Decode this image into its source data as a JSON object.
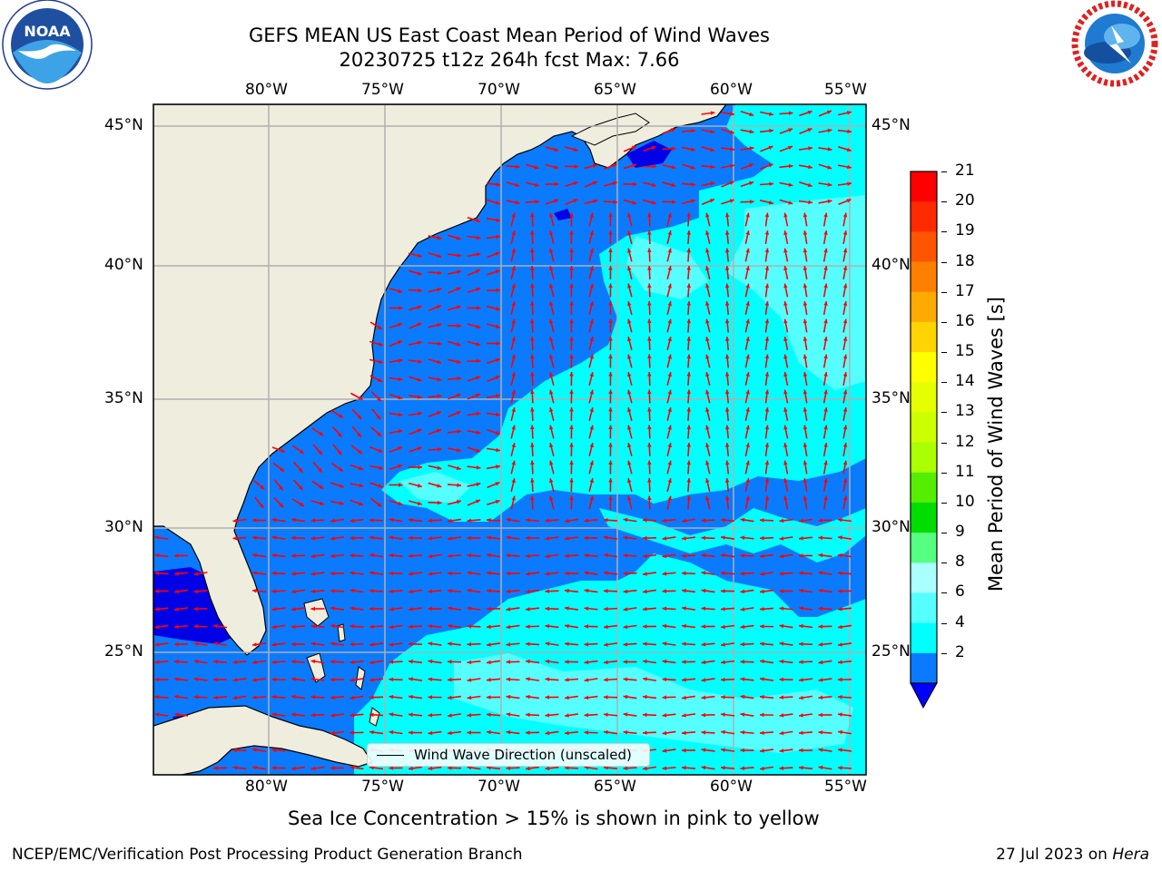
{
  "title": {
    "line1": "GEFS MEAN US East Coast Mean Period of Wind Waves",
    "line2": "20230725 t12z 264h fcst   Max: 7.66"
  },
  "logos": {
    "left": {
      "icon": "noaa-logo",
      "text": "NOAA"
    },
    "right": {
      "icon": "nws-logo",
      "text": "NATIONAL WEATHER SERVICE"
    }
  },
  "map": {
    "lon_labels": [
      "80°W",
      "75°W",
      "70°W",
      "65°W",
      "60°W",
      "55°W"
    ],
    "lat_labels": [
      "45°N",
      "40°N",
      "35°N",
      "30°N",
      "25°N"
    ],
    "colors": {
      "land": "#efedde",
      "ocean_dark": "#0000e6",
      "ocean_blue": "#0a7bff",
      "ocean_cyan": "#00ffff",
      "ocean_lightcyan": "#55ffff",
      "arrows": "#ff0000",
      "grid": "#b0b0b0"
    }
  },
  "legend": {
    "label": "Wind Wave Direction (unscaled)"
  },
  "colorbar": {
    "title": "Mean Period of Wind Waves [s]",
    "ticks": [
      "21",
      "20",
      "19",
      "18",
      "17",
      "16",
      "15",
      "14",
      "13",
      "12",
      "11",
      "10",
      "9",
      "8",
      "6",
      "4",
      "2"
    ],
    "colors": [
      "#ff0000",
      "#ff2a00",
      "#ff5500",
      "#ff7f00",
      "#ffaa00",
      "#ffd400",
      "#ffff00",
      "#e5ff00",
      "#ccff00",
      "#aaff00",
      "#55ee00",
      "#00dd00",
      "#55ff80",
      "#aaffff",
      "#55ffff",
      "#00ffff",
      "#0a7bff"
    ],
    "extend_color": "#0000ff"
  },
  "footer": {
    "note": "Sea Ice Concentration > 15% is shown in pink to yellow",
    "credit": "NCEP/EMC/Verification Post Processing Product Generation Branch",
    "date": "27 Jul 2023 on",
    "host": "Hera"
  }
}
